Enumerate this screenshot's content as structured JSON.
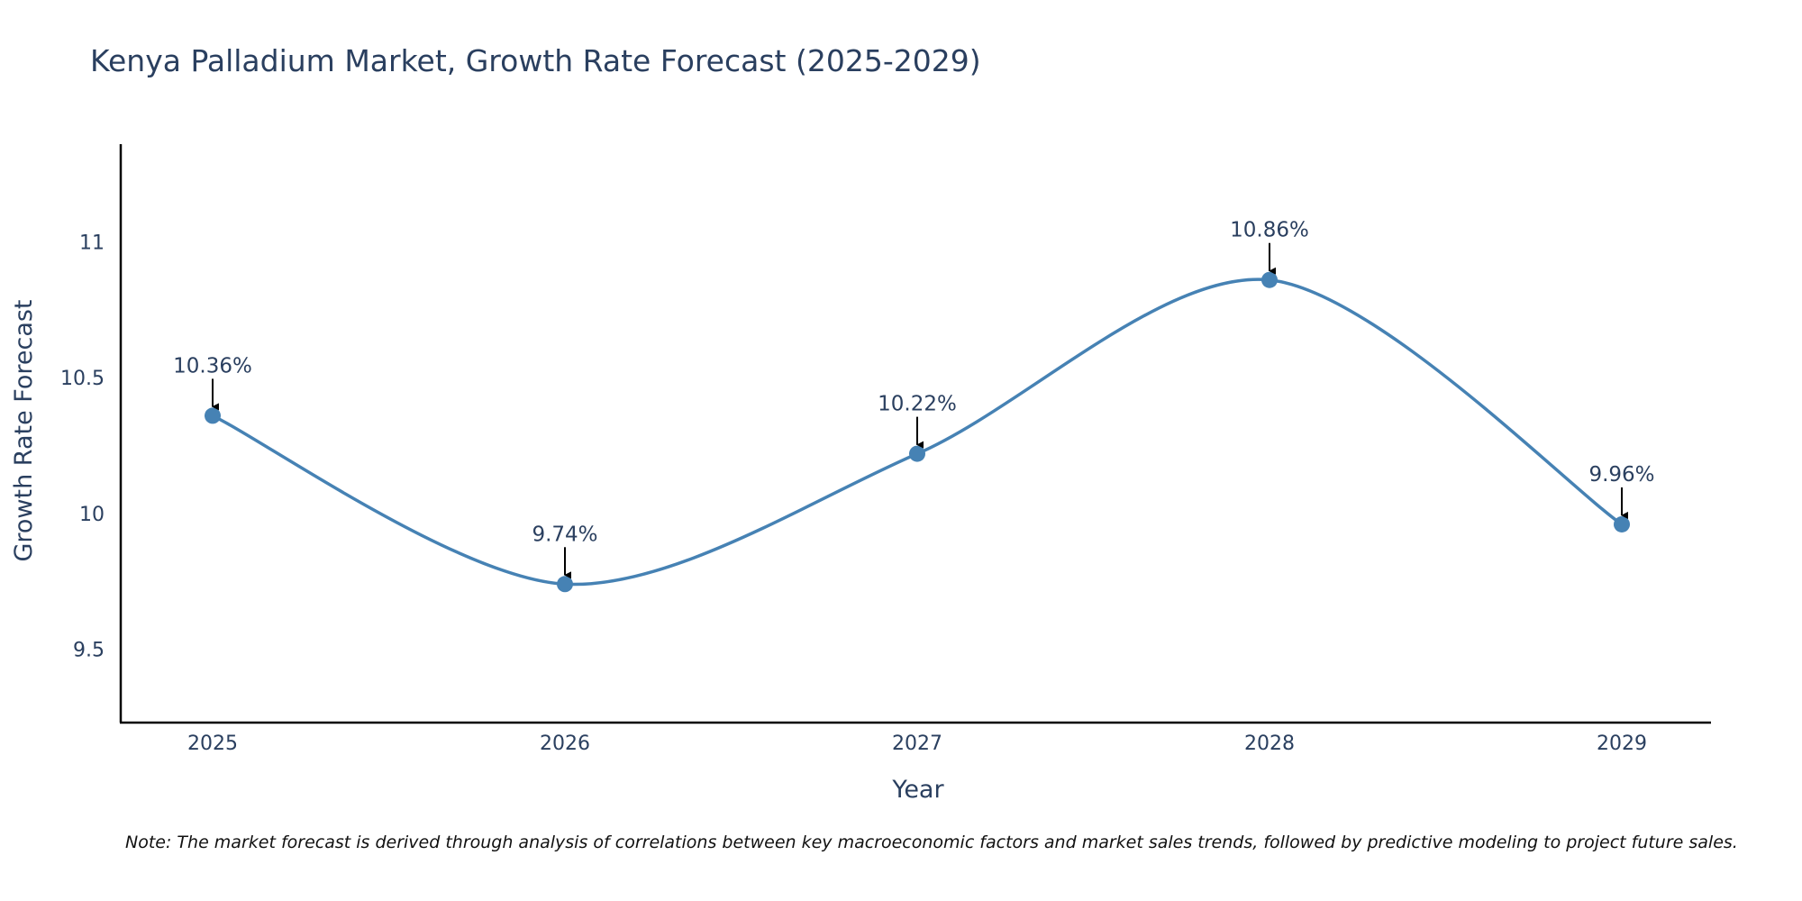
{
  "chart_data": {
    "type": "line",
    "title": "Kenya Palladium Market, Growth Rate Forecast (2025-2029)",
    "xlabel": "Year",
    "ylabel": "Growth Rate Forecast",
    "categories": [
      "2025",
      "2026",
      "2027",
      "2028",
      "2029"
    ],
    "series": [
      {
        "name": "Growth Rate Forecast",
        "values": [
          10.36,
          9.74,
          10.22,
          10.86,
          9.96
        ]
      }
    ],
    "data_labels": [
      "10.36%",
      "9.74%",
      "10.22%",
      "10.86%",
      "9.96%"
    ],
    "y_ticks": [
      "9.5",
      "10",
      "10.5",
      "11"
    ],
    "y_tick_values": [
      9.5,
      10,
      10.5,
      11
    ],
    "ylim": [
      9.23,
      11.36
    ],
    "grid": false,
    "line_shape": "spline",
    "line_color": "#4682b4",
    "marker_color": "#4682b4",
    "note": "Note: The market forecast is derived through analysis of correlations between key macroeconomic factors and market sales trends, followed by predictive modeling to project future sales."
  }
}
